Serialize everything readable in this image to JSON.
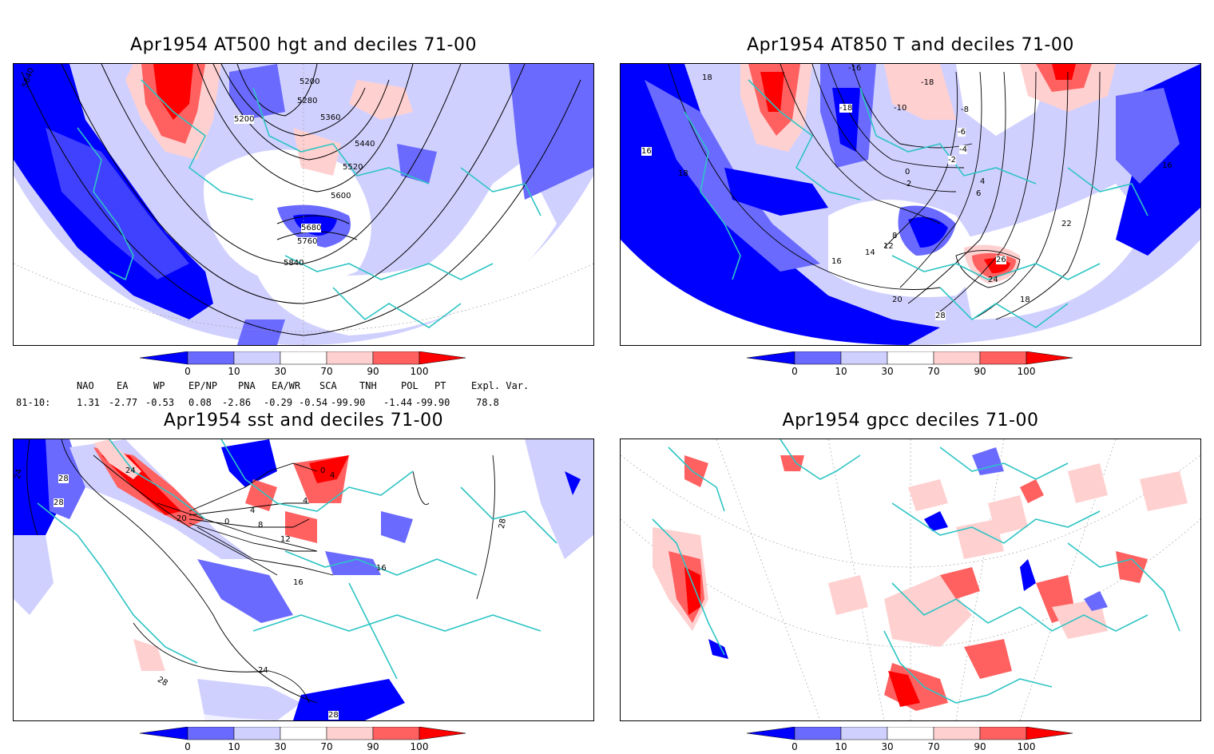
{
  "panels": [
    {
      "title": "Apr1954 AT500 hgt and deciles 71-00",
      "contour_labels": [
        "5840",
        "5200",
        "5280",
        "5200",
        "5360",
        "5440",
        "5520",
        "5600",
        "5680",
        "5760",
        "5840"
      ]
    },
    {
      "title": "Apr1954 AT850 T and deciles 71-00",
      "contour_labels": [
        "18",
        "16",
        "18",
        "-16",
        "-18",
        "-10",
        "-18",
        "-8",
        "-6",
        "-4",
        "-2",
        "0",
        "2",
        "4",
        "6",
        "8",
        "12",
        "14",
        "16",
        "18",
        "20",
        "22",
        "24",
        "26",
        "28",
        "16"
      ]
    },
    {
      "title": "Apr1954 sst and deciles 71-00",
      "contour_labels": [
        "24",
        "28",
        "28",
        "24",
        "20",
        "0",
        "4",
        "8",
        "12",
        "16",
        "0",
        "4",
        "4",
        "16",
        "24",
        "28",
        "28",
        "28"
      ]
    },
    {
      "title": "Apr1954 gpcc deciles 71-00",
      "contour_labels": []
    }
  ],
  "colorbar": {
    "labels": [
      "0",
      "10",
      "30",
      "70",
      "90",
      "100"
    ],
    "colors": [
      "#0000ff",
      "#6a6aff",
      "#d0d0ff",
      "#ffffff",
      "#ffd0d0",
      "#ff6060",
      "#ff0000"
    ]
  },
  "indices": {
    "header": [
      "NAO",
      "EA",
      "WP",
      "EP/NP",
      "PNA",
      "EA/WR",
      "SCA",
      "TNH",
      "POL",
      "PT",
      "Expl. Var."
    ],
    "row_label": "81-10:",
    "values": [
      "1.31",
      "-2.77",
      "-0.53",
      "0.08",
      "-2.86",
      "-0.29",
      "-0.54",
      "-99.90",
      "-1.44",
      "-99.90",
      "78.8"
    ]
  },
  "colors": {
    "coast": "#2ec4c4",
    "deep_blue": "#0000ff",
    "mid_blue": "#6a6aff",
    "light_blue": "#d0d0ff",
    "light_red": "#ffd0d0",
    "mid_red": "#ff6060",
    "deep_red": "#ff0000"
  }
}
